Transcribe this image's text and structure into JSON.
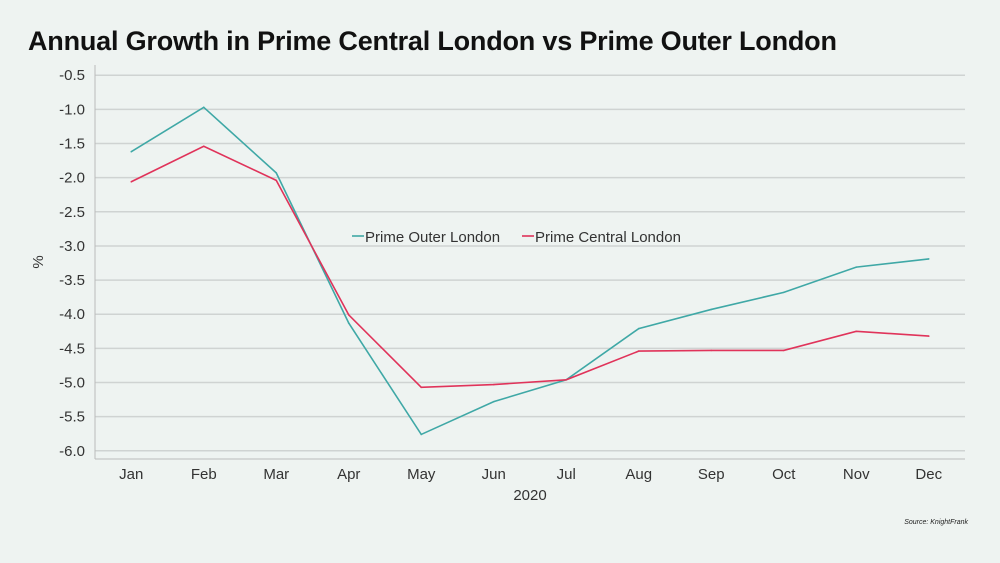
{
  "chart_data": {
    "type": "line",
    "title": "Annual Growth in Prime Central London vs Prime Outer London",
    "xlabel": "2020",
    "ylabel": "%",
    "categories": [
      "Jan",
      "Feb",
      "Mar",
      "Apr",
      "May",
      "Jun",
      "Jul",
      "Aug",
      "Sep",
      "Oct",
      "Nov",
      "Dec"
    ],
    "yticks": [
      "-0.5",
      "-1.0",
      "-1.5",
      "-2.0",
      "-2.5",
      "-3.0",
      "-3.5",
      "-4.0",
      "-4.5",
      "-5.0",
      "-5.5",
      "-6.0"
    ],
    "ylim": [
      -6.12,
      -0.35
    ],
    "grid": true,
    "legend_position": "center",
    "series": [
      {
        "name": "Prime Outer London",
        "color": "#3fa8a6",
        "values": [
          -1.62,
          -0.97,
          -1.93,
          -4.13,
          -5.76,
          -5.28,
          -4.96,
          -4.21,
          -3.93,
          -3.68,
          -3.31,
          -3.19
        ]
      },
      {
        "name": "Prime Central London",
        "color": "#e0335a",
        "values": [
          -2.06,
          -1.54,
          -2.04,
          -4.01,
          -5.07,
          -5.03,
          -4.96,
          -4.54,
          -4.53,
          -4.53,
          -4.25,
          -4.32
        ]
      }
    ],
    "source": "Source: KnightFrank"
  }
}
